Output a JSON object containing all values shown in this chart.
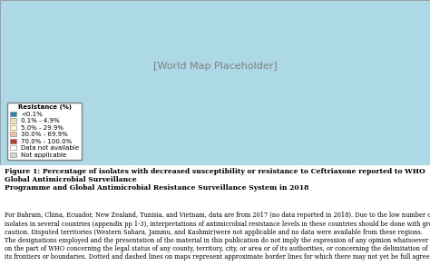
{
  "figure_title": "Figure 1: Percentage of isolates with decreased susceptibility or resistance to Ceftriaxone reported to WHO Global Antimicrobial Surveillance\nProgramme and Global Antimicrobial Resistance Surveillance System in 2018",
  "caption_text": "For Bahrain, China, Ecuador, New Zealand, Tunisia, and Vietnam, data are from 2017 (no data reported in 2018). Due to the low number of\nisolates in several countries (appendix pp 1-3), interpretations of antimicrobial resistance levels in these countries should be done with great\ncaution. Disputed territories (Western Sahara, Jammu, and Kashmir)were not applicable and no data were available from these regions.\nThe designations employed and the presentation of the material in this publication do not imply the expression of any opinion whatsoever\non the part of WHO concerning the legal status of any county, territory, city, or area or of its authorities, or concerning the delimitation of\nits frontiers or boundaries. Dotted and dashed lines on maps represent approximate border lines for which there may not yet be full agreement.",
  "legend_title": "Resistance (%)",
  "legend_items": [
    {
      "label": "<0.1%",
      "color": "#2E86AB"
    },
    {
      "label": "0.1% - 4.9%",
      "color": "#F5DEB3"
    },
    {
      "label": "5.0% - 29.9%",
      "color": "#FFFACD"
    },
    {
      "label": "30.0% - 69.9%",
      "color": "#F4C2A1"
    },
    {
      "label": "70.0% - 100.0%",
      "color": "#C0392B"
    },
    {
      "label": "Data not available",
      "color": "#FFFFFF"
    },
    {
      "label": "Not applicable",
      "color": "#D3D3D3"
    }
  ],
  "map_bg_color": "#ADD8E6",
  "fig_bg_color": "#FFFFFF",
  "border_color": "#808080",
  "title_fontsize": 5.5,
  "caption_fontsize": 4.8,
  "legend_fontsize": 5.0,
  "figsize": [
    4.74,
    2.93
  ],
  "dpi": 100
}
